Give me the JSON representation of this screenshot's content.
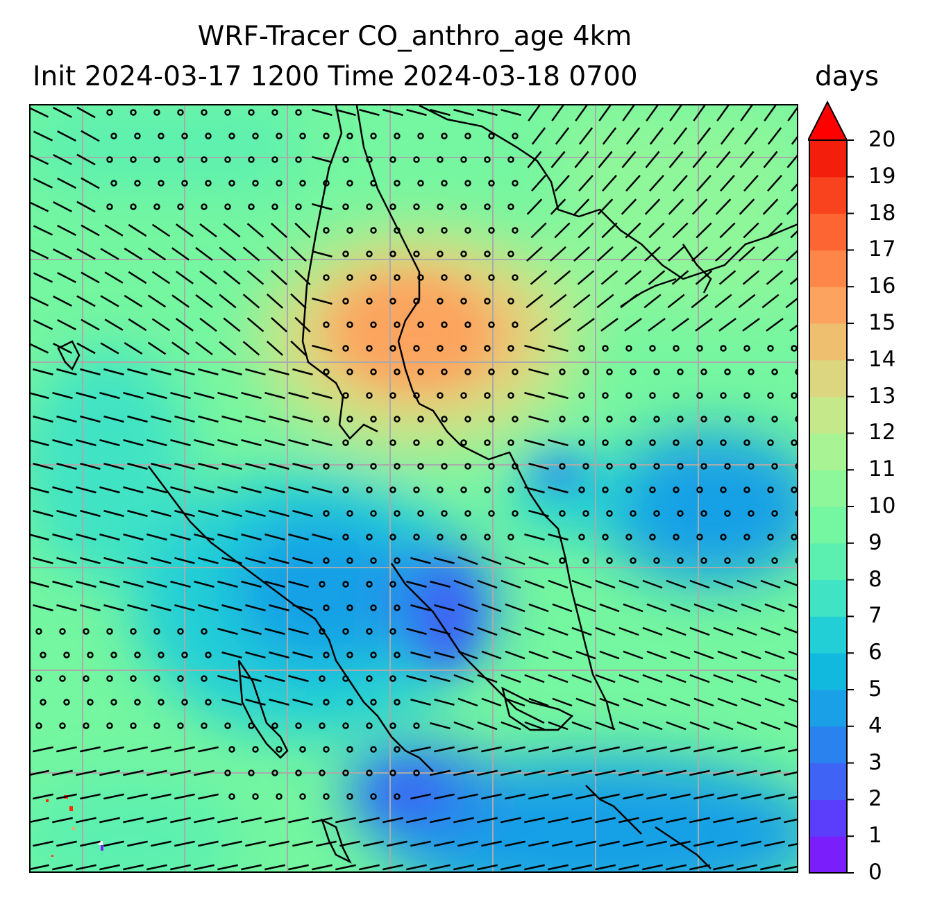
{
  "title": {
    "line1": "WRF-Tracer CO_anthro_age 4km",
    "line2": "Init 2024-03-17 1200 Time 2024-03-18 0700"
  },
  "colorbar": {
    "units": "days",
    "min": 0,
    "max": 20,
    "extend": "max",
    "ticks": [
      "0",
      "1",
      "2",
      "3",
      "4",
      "5",
      "6",
      "7",
      "8",
      "9",
      "10",
      "11",
      "12",
      "13",
      "14",
      "15",
      "16",
      "17",
      "18",
      "19",
      "20"
    ],
    "colors": [
      "#7a1ffc",
      "#5a3efc",
      "#3e63f5",
      "#2a82ee",
      "#19a0e6",
      "#12b9df",
      "#22cfd6",
      "#40e3c4",
      "#5cf0b0",
      "#75f6a0",
      "#8ef79a",
      "#a8f495",
      "#c5e98a",
      "#dbd67f",
      "#efbf70",
      "#fca45f",
      "#fe8648",
      "#fd6532",
      "#f9421e",
      "#f31f0c"
    ],
    "over_color": "#ff0000"
  },
  "map": {
    "contains": [
      "filled-contours",
      "wind-barbs",
      "calm-wind-circles",
      "coastlines",
      "gridlines"
    ],
    "gridline_color": "#aaaaaa",
    "coastline_color": "#000000"
  }
}
